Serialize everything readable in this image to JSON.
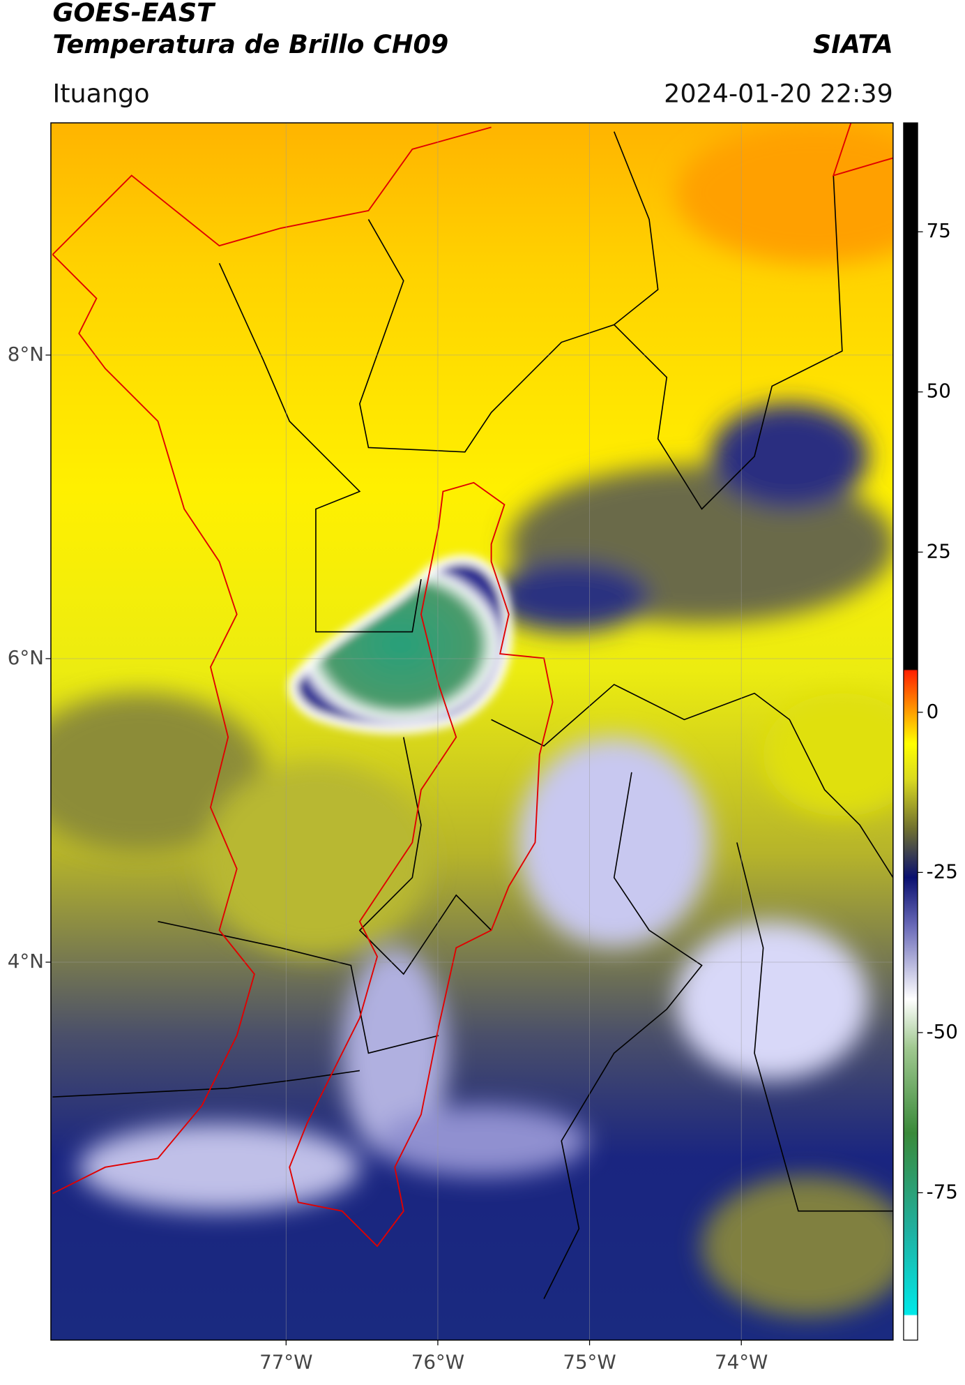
{
  "header": {
    "title": "GOES-EAST",
    "subtitle": "Temperatura de Brillo CH09",
    "source": "SIATA",
    "location": "Ituango",
    "datetime": "2024-01-20 22:39"
  },
  "map": {
    "lonlim": [
      -78.55,
      -73.0
    ],
    "latlim": [
      1.51,
      9.53
    ],
    "lonticks": [
      {
        "value": -77,
        "label": "77°W"
      },
      {
        "value": -76,
        "label": "76°W"
      },
      {
        "value": -75,
        "label": "75°W"
      },
      {
        "value": -74,
        "label": "74°W"
      }
    ],
    "latticks": [
      {
        "value": 8,
        "label": "8°N"
      },
      {
        "value": 6,
        "label": "6°N"
      },
      {
        "value": 4,
        "label": "4°N"
      }
    ]
  },
  "colorbar": {
    "lim": [
      -98,
      92
    ],
    "ticks": [
      75,
      50,
      25,
      0,
      -25,
      -50,
      -75
    ]
  }
}
